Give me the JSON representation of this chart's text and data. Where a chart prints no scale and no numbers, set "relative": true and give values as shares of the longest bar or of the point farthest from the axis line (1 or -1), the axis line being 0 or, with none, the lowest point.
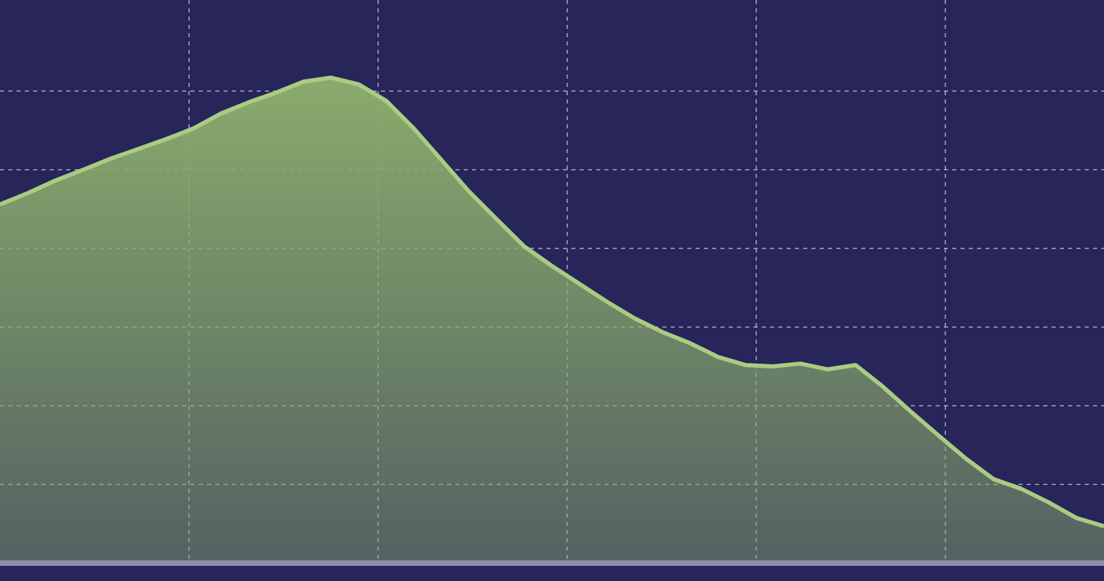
{
  "chart_data": {
    "type": "area",
    "relative": true,
    "grid": true,
    "color": "#8aab6c",
    "categories": [
      null,
      null,
      null,
      null,
      null,
      null,
      null,
      null,
      null,
      null,
      null,
      null,
      null,
      null,
      null,
      null,
      null,
      null,
      null,
      null,
      null,
      null,
      null,
      null,
      null,
      null,
      null,
      null,
      null,
      null,
      null,
      null,
      null,
      null,
      null,
      null,
      null,
      null,
      null,
      null,
      null
    ],
    "values": [
      0.739,
      0.762,
      0.788,
      0.81,
      0.833,
      0.853,
      0.873,
      0.895,
      0.926,
      0.949,
      0.969,
      0.992,
      1,
      0.986,
      0.952,
      0.895,
      0.83,
      0.765,
      0.708,
      0.652,
      0.612,
      0.575,
      0.538,
      0.504,
      0.476,
      0.453,
      0.425,
      0.408,
      0.405,
      0.411,
      0.399,
      0.408,
      0.363,
      0.312,
      0.263,
      0.215,
      0.173,
      0.153,
      0.125,
      0.093,
      0.076
    ]
  }
}
